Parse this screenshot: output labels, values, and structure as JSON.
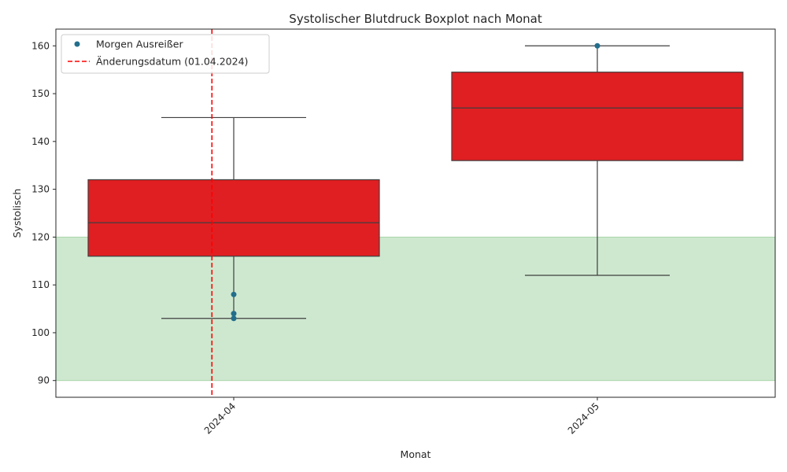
{
  "chart_data": {
    "type": "boxplot",
    "title": "Systolischer Blutdruck Boxplot nach Monat",
    "xlabel": "Monat",
    "ylabel": "Systolisch",
    "ylim": [
      86.5,
      163.5
    ],
    "yticks": [
      90,
      100,
      110,
      120,
      130,
      140,
      150,
      160
    ],
    "categories": [
      "2024-04",
      "2024-05"
    ],
    "boxes": [
      {
        "category": "2024-04",
        "whisker_low": 103,
        "q1": 116,
        "median": 123,
        "q3": 132,
        "whisker_high": 145
      },
      {
        "category": "2024-05",
        "whisker_low": 112,
        "q1": 136,
        "median": 147,
        "q3": 154.5,
        "whisker_high": 160
      }
    ],
    "outliers": {
      "name": "Morgen Ausreißer",
      "points": [
        {
          "category": "2024-04",
          "value": 108
        },
        {
          "category": "2024-04",
          "value": 104
        },
        {
          "category": "2024-04",
          "value": 103
        },
        {
          "category": "2024-05",
          "value": 160
        }
      ]
    },
    "reference_line": {
      "name": "Änderungsdatum (01.04.2024)",
      "category_position": -0.06,
      "color": "#ff0000",
      "style": "dashed"
    },
    "target_band": {
      "low": 90,
      "high": 120,
      "color": "#a5d6a7"
    },
    "box_color": "#e01f22",
    "outlier_color": "#236e8c",
    "legend_placement": "top-left",
    "grid": false
  }
}
